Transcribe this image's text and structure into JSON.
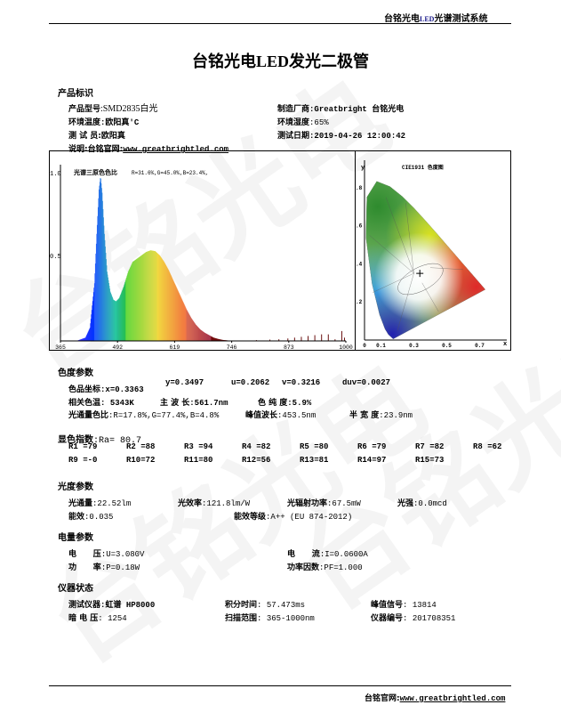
{
  "watermark": "台铭光电",
  "header": {
    "brand": "台铭光电",
    "led": "LED",
    "system": "光谱测试系统"
  },
  "title": {
    "brand": "台铭光电",
    "led": "LED",
    "rest": "发光二极管"
  },
  "product": {
    "section": "产品标识",
    "model_label": "产品型号",
    "model": ":SMD2835白光",
    "maker_label": "制造厂商",
    "maker": ":Greatbright 台铭光电",
    "temp_label": "环境温度",
    "temp": ":欧阳真'C",
    "humidity_label": "环境湿度",
    "humidity": ":65%",
    "tester_label": "测 试 员",
    "tester": ":欧阳真",
    "date_label": "测试日期",
    "date": ":2019-04-26 12:00:42",
    "note_label": "说明:台铭官网:",
    "note_url": "www.greatbrightled.com"
  },
  "chart_data": [
    {
      "type": "area",
      "title": "光谱三原色色比",
      "subtitle": "R=31.6%,G=45.0%,B=23.4%,",
      "xlim": [
        365,
        1000
      ],
      "ylim": [
        0,
        1.0
      ],
      "x_ticks": [
        "365",
        "492",
        "619",
        "746",
        "873",
        "1000"
      ],
      "y_ticks": [
        "1.0",
        "0.5"
      ],
      "x": [
        400,
        420,
        430,
        440,
        445,
        450,
        453.5,
        457,
        462,
        468,
        475,
        482,
        488,
        495,
        505,
        515,
        525,
        535,
        545,
        555,
        565,
        575,
        585,
        595,
        605,
        615,
        625,
        635,
        645,
        655,
        665,
        675,
        685,
        695,
        705,
        715,
        725,
        740,
        760
      ],
      "values": [
        0,
        0.02,
        0.08,
        0.35,
        0.65,
        0.92,
        1.0,
        0.9,
        0.65,
        0.42,
        0.3,
        0.25,
        0.24,
        0.26,
        0.33,
        0.42,
        0.48,
        0.5,
        0.52,
        0.54,
        0.55,
        0.545,
        0.52,
        0.48,
        0.43,
        0.37,
        0.31,
        0.25,
        0.19,
        0.14,
        0.1,
        0.07,
        0.05,
        0.035,
        0.02,
        0.012,
        0.006,
        0.002,
        0
      ],
      "ir_spikes_x": [
        800,
        830,
        850,
        870,
        885,
        900,
        915,
        930,
        945,
        960,
        975,
        990,
        996
      ],
      "ir_spikes_values": [
        0.005,
        0.008,
        0.01,
        0.015,
        0.02,
        0.025,
        0.03,
        0.035,
        0.04,
        0.04,
        0.01,
        0.06,
        0.02
      ]
    },
    {
      "type": "scatter",
      "title": "CIE1931 色度图",
      "xlabel": "x",
      "ylabel": "y",
      "xlim": [
        0,
        0.8
      ],
      "ylim": [
        0,
        0.9
      ],
      "x_ticks": [
        "0",
        "0.1",
        "0.3",
        "0.5",
        "0.7"
      ],
      "y_ticks": [
        ".8",
        ".6",
        ".4",
        ".2"
      ],
      "point": {
        "x": 0.3363,
        "y": 0.3497
      }
    }
  ],
  "chroma": {
    "section": "色度参数",
    "coord_label": "色品坐标",
    "x": ":x=0.3363",
    "y": "y=0.3497",
    "u": "u=0.2062",
    "v": "v=0.3216",
    "duv": "duv=0.0027",
    "cct_label": "相关色温",
    "cct": ": 5343K",
    "dom_label": "主 波 长",
    "dom": ":561.7nm",
    "purity_label": "色 纯 度",
    "purity": ":5.9%",
    "ratio_label": "光通量色比",
    "ratio": ":R=17.8%,G=77.4%,B=4.8%",
    "peak_label": "峰值波长",
    "peak": ":453.5nm",
    "fwhm_label": "半 宽 度",
    "fwhm": ":23.9nm"
  },
  "cri": {
    "section": "显色指数",
    "ra": ":Ra= 80.7",
    "items": [
      "R1 =79",
      "R2 =88",
      "R3 =94",
      "R4 =82",
      "R5 =80",
      "R6 =79",
      "R7 =82",
      "R8 =62",
      "R9 =-0",
      "R10=72",
      "R11=80",
      "R12=56",
      "R13=81",
      "R14=97",
      "R15=73"
    ]
  },
  "photometric": {
    "section": "光度参数",
    "flux_label": "光通量",
    "flux": ":22.52lm",
    "eff_label": "光效率",
    "eff": ":121.8lm/W",
    "rad_label": "光辐射功率",
    "rad": ":67.5mW",
    "intensity_label": "光强",
    "intensity": ":0.0mcd",
    "energy_label": "能效",
    "energy": ":0.035",
    "grade_label": "能效等级",
    "grade": ":A++ (EU 874-2012)"
  },
  "electrical": {
    "section": "电量参数",
    "voltage_label": "电      压",
    "voltage": ":U=3.080V",
    "current_label": "电      流",
    "current": ":I=0.0600A",
    "power_label": "功      率",
    "power": ":P=0.18W",
    "pf_label": "功率因数",
    "pf": ":PF=1.000"
  },
  "instrument": {
    "section": "仪器状态",
    "device_label": "测试仪器",
    "device": ":虹谱 HP8000",
    "integ_label": "积分时间",
    "integ": ": 57.473ms",
    "signal_label": "峰值信号",
    "signal": ": 13814",
    "dark_label": "暗 电 压",
    "dark": ": 1254",
    "scan_label": "扫描范围",
    "scan": ": 365-1000nm",
    "serial_label": "仪器编号",
    "serial": ": 201708351"
  },
  "footer": {
    "label": "台铭官网:",
    "url": "www.greatbrightled.com"
  }
}
